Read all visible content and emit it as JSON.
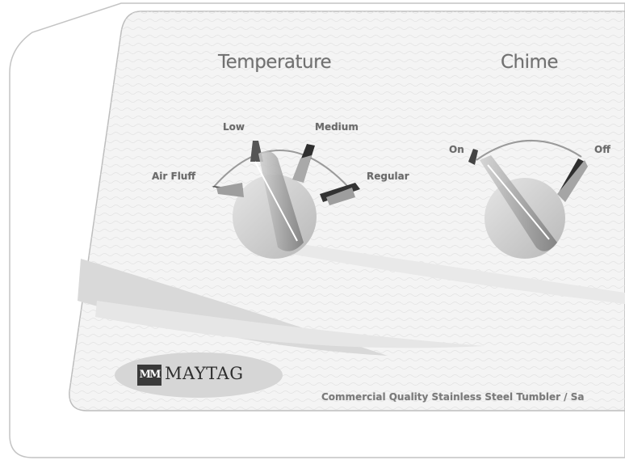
{
  "panel": {
    "temperature_title": "Temperature",
    "chime_title": "Chime",
    "temperature_options": {
      "low": "Low",
      "medium": "Medium",
      "air_fluff": "Air Fluff",
      "regular": "Regular"
    },
    "chime_options": {
      "on": "On",
      "off": "Off"
    },
    "brand": {
      "mark": "MM",
      "name": "MAYTAG"
    },
    "tagline": "Commercial Quality Stainless Steel Tumbler / Sa"
  },
  "colors": {
    "panel_fill": "#f4f4f4",
    "knob": "#cfcfcf",
    "pointer": "#2a2a2a",
    "swoosh": "#d8d8d8"
  },
  "icons": {
    "temperature_knob": "rotary-dial-icon",
    "chime_knob": "rotary-dial-icon",
    "logo": "maytag-logo"
  }
}
